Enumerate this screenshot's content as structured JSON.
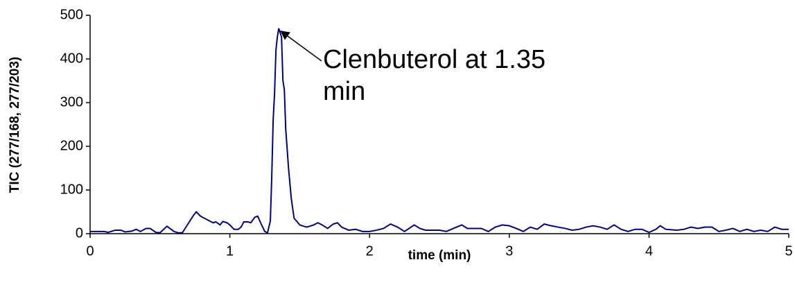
{
  "chart_data": {
    "type": "line",
    "xlabel": "time (min)",
    "ylabel": "TIC (277/168, 277/203)",
    "color": "#000080",
    "x": [
      0,
      0.05,
      0.1,
      0.13,
      0.18,
      0.22,
      0.25,
      0.3,
      0.33,
      0.36,
      0.4,
      0.43,
      0.47,
      0.5,
      0.55,
      0.6,
      0.63,
      0.66,
      0.7,
      0.74,
      0.76,
      0.79,
      0.82,
      0.85,
      0.88,
      0.9,
      0.93,
      0.95,
      0.98,
      1.0,
      1.03,
      1.06,
      1.08,
      1.1,
      1.13,
      1.15,
      1.18,
      1.2,
      1.22,
      1.25,
      1.27,
      1.29,
      1.3,
      1.31,
      1.32,
      1.33,
      1.34,
      1.35,
      1.36,
      1.37,
      1.38,
      1.39,
      1.4,
      1.42,
      1.44,
      1.46,
      1.48,
      1.5,
      1.55,
      1.6,
      1.63,
      1.66,
      1.7,
      1.74,
      1.77,
      1.8,
      1.85,
      1.9,
      1.95,
      2.0,
      2.05,
      2.1,
      2.15,
      2.2,
      2.25,
      2.32,
      2.36,
      2.4,
      2.5,
      2.55,
      2.6,
      2.66,
      2.7,
      2.8,
      2.85,
      2.9,
      2.95,
      3.0,
      3.05,
      3.1,
      3.15,
      3.2,
      3.25,
      3.3,
      3.35,
      3.4,
      3.45,
      3.5,
      3.55,
      3.6,
      3.65,
      3.7,
      3.75,
      3.8,
      3.85,
      3.9,
      3.95,
      4.0,
      4.05,
      4.08,
      4.12,
      4.2,
      4.25,
      4.3,
      4.35,
      4.4,
      4.45,
      4.5,
      4.55,
      4.6,
      4.65,
      4.7,
      4.75,
      4.8,
      4.85,
      4.9,
      4.95,
      5.0
    ],
    "values": [
      5,
      5,
      5,
      3,
      8,
      8,
      4,
      6,
      10,
      5,
      12,
      12,
      3,
      2,
      17,
      5,
      2,
      2,
      22,
      42,
      50,
      40,
      35,
      30,
      25,
      27,
      20,
      28,
      25,
      20,
      10,
      10,
      15,
      27,
      27,
      25,
      38,
      40,
      25,
      5,
      2,
      30,
      130,
      260,
      320,
      420,
      450,
      470,
      460,
      450,
      350,
      330,
      240,
      150,
      80,
      35,
      28,
      20,
      15,
      20,
      25,
      20,
      12,
      22,
      25,
      15,
      8,
      10,
      5,
      5,
      8,
      12,
      22,
      15,
      5,
      20,
      12,
      8,
      8,
      5,
      12,
      20,
      12,
      12,
      5,
      15,
      20,
      18,
      12,
      5,
      15,
      10,
      22,
      18,
      15,
      12,
      8,
      10,
      15,
      18,
      15,
      10,
      20,
      10,
      5,
      10,
      10,
      3,
      10,
      18,
      10,
      8,
      10,
      15,
      12,
      15,
      15,
      5,
      8,
      12,
      5,
      10,
      5,
      8,
      5,
      15,
      10,
      10
    ],
    "xlim": [
      0,
      5
    ],
    "xticks": [
      0,
      1,
      2,
      3,
      4,
      5
    ],
    "ylim": [
      0,
      500
    ],
    "yticks": [
      0,
      100,
      200,
      300,
      400,
      500
    ],
    "annotation": {
      "text": "Clenbuterol at 1.35 min",
      "x": 1.35,
      "y": 470
    }
  }
}
